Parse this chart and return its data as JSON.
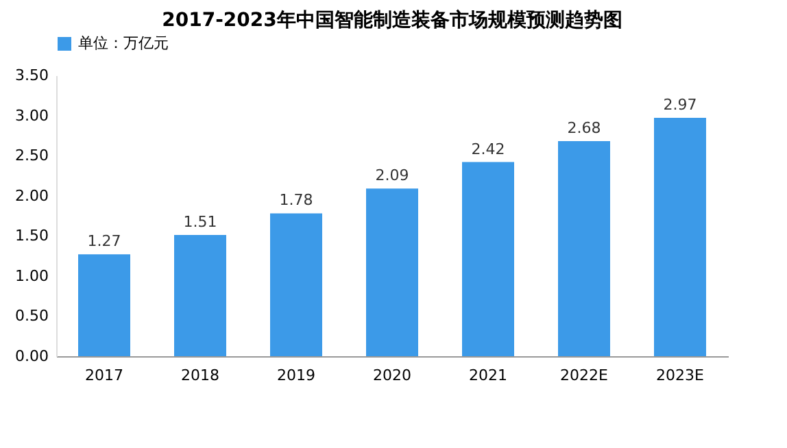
{
  "chart_data": {
    "type": "bar",
    "title": "2017-2023年中国智能制造装备市场规模预测趋势图",
    "categories": [
      "2017",
      "2018",
      "2019",
      "2020",
      "2021",
      "2022E",
      "2023E"
    ],
    "series": [
      {
        "name": "单位：万亿元",
        "color": "#3c9ae8",
        "values": [
          1.27,
          1.51,
          1.78,
          2.09,
          2.42,
          2.68,
          2.97
        ]
      }
    ],
    "ylim": [
      0,
      3.5
    ],
    "yticks": [
      {
        "value": 0,
        "label": "0.00"
      },
      {
        "value": 0.5,
        "label": "0.50"
      },
      {
        "value": 1,
        "label": "1.00"
      },
      {
        "value": 1.5,
        "label": "1.50"
      },
      {
        "value": 2,
        "label": "2.00"
      },
      {
        "value": 2.5,
        "label": "2.50"
      },
      {
        "value": 3,
        "label": "3.00"
      },
      {
        "value": 3.5,
        "label": "3.50"
      }
    ],
    "data_labels": true,
    "grid": false,
    "legend": "top"
  }
}
